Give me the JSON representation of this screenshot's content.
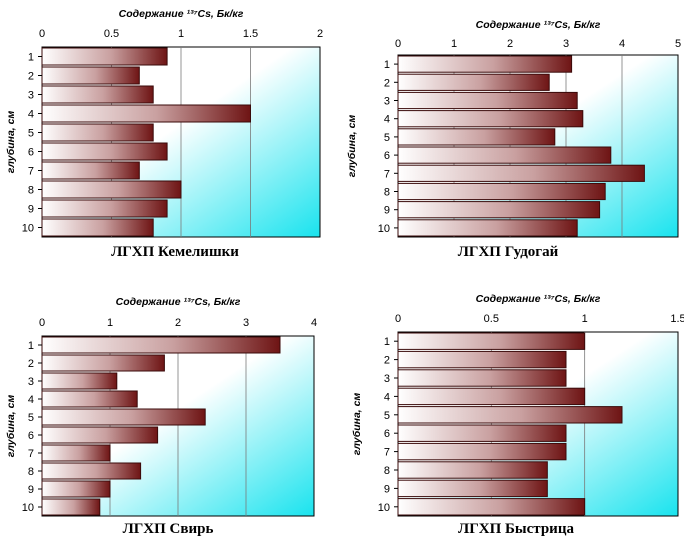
{
  "colors": {
    "bar_light": "#ffffff",
    "bar_dark": "#6e1414",
    "bar_stroke": "#3a0a0a",
    "plot_bg_start": "#ffffff",
    "plot_bg_end": "#19e3ee",
    "gridline": "#7a7a7a"
  },
  "chart_data": [
    {
      "type": "bar",
      "orientation": "horizontal",
      "title": "ЛГХП Кемелишки",
      "xlabel": "Содержание ¹³⁷Cs, Бк/кг",
      "ylabel": "глубина, см",
      "categories": [
        "1",
        "2",
        "3",
        "4",
        "5",
        "6",
        "7",
        "8",
        "9",
        "10"
      ],
      "values": [
        0.9,
        0.7,
        0.8,
        1.5,
        0.8,
        0.9,
        0.7,
        1.0,
        0.9,
        0.8
      ],
      "xlim": [
        0,
        2
      ],
      "xticks": [
        0,
        0.5,
        1,
        1.5,
        2
      ],
      "xtick_labels": [
        "0",
        "0.5",
        "1",
        "1.5",
        "2"
      ],
      "grid": "vertical",
      "legend": "none"
    },
    {
      "type": "bar",
      "orientation": "horizontal",
      "title": "ЛГХП Гудогай",
      "xlabel": "Содержание ¹³⁷Cs, Бк/кг",
      "ylabel": "глубина, см",
      "categories": [
        "1",
        "2",
        "3",
        "4",
        "5",
        "6",
        "7",
        "8",
        "9",
        "10"
      ],
      "values": [
        3.1,
        2.7,
        3.2,
        3.3,
        2.8,
        3.8,
        4.4,
        3.7,
        3.6,
        3.2
      ],
      "xlim": [
        0,
        5
      ],
      "xticks": [
        0,
        1,
        2,
        3,
        4,
        5
      ],
      "xtick_labels": [
        "0",
        "1",
        "2",
        "3",
        "4",
        "5"
      ],
      "grid": "vertical",
      "legend": "none"
    },
    {
      "type": "bar",
      "orientation": "horizontal",
      "title": "ЛГХП Свирь",
      "xlabel": "Содержание ¹³⁷Cs, Бк/кг",
      "ylabel": "глубина, см",
      "categories": [
        "1",
        "2",
        "3",
        "4",
        "5",
        "6",
        "7",
        "8",
        "9",
        "10"
      ],
      "values": [
        3.5,
        1.8,
        1.1,
        1.4,
        2.4,
        1.7,
        1.0,
        1.45,
        1.0,
        0.85
      ],
      "xlim": [
        0,
        4
      ],
      "xticks": [
        0,
        1,
        2,
        3,
        4
      ],
      "xtick_labels": [
        "0",
        "1",
        "2",
        "3",
        "4"
      ],
      "grid": "vertical",
      "legend": "none"
    },
    {
      "type": "bar",
      "orientation": "horizontal",
      "title": "ЛГХП Быстрица",
      "xlabel": "Содержание ¹³⁷Cs, Бк/кг",
      "ylabel": "глубина, см",
      "categories": [
        "1",
        "2",
        "3",
        "4",
        "5",
        "6",
        "7",
        "8",
        "9",
        "10"
      ],
      "values": [
        1.0,
        0.9,
        0.9,
        1.0,
        1.2,
        0.9,
        0.9,
        0.8,
        0.8,
        1.0
      ],
      "xlim": [
        0,
        1.5
      ],
      "xticks": [
        0,
        0.5,
        1,
        1.5
      ],
      "xtick_labels": [
        "0",
        "0.5",
        "1",
        "1.5"
      ],
      "grid": "vertical",
      "legend": "none"
    }
  ]
}
